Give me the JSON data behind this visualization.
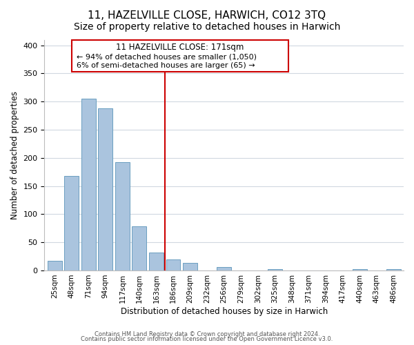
{
  "title": "11, HAZELVILLE CLOSE, HARWICH, CO12 3TQ",
  "subtitle": "Size of property relative to detached houses in Harwich",
  "bar_labels": [
    "25sqm",
    "48sqm",
    "71sqm",
    "94sqm",
    "117sqm",
    "140sqm",
    "163sqm",
    "186sqm",
    "209sqm",
    "232sqm",
    "256sqm",
    "279sqm",
    "302sqm",
    "325sqm",
    "348sqm",
    "371sqm",
    "394sqm",
    "417sqm",
    "440sqm",
    "463sqm",
    "486sqm"
  ],
  "bar_values": [
    17,
    168,
    305,
    288,
    193,
    79,
    32,
    19,
    13,
    0,
    6,
    0,
    0,
    3,
    0,
    0,
    0,
    0,
    3,
    0,
    2
  ],
  "bar_color": "#aac4de",
  "bar_edge_color": "#6a9ec0",
  "ylim": [
    0,
    410
  ],
  "yticks": [
    0,
    50,
    100,
    150,
    200,
    250,
    300,
    350,
    400
  ],
  "ylabel": "Number of detached properties",
  "xlabel": "Distribution of detached houses by size in Harwich",
  "vline_x_index": 6,
  "vline_color": "#cc0000",
  "annotation_title": "11 HAZELVILLE CLOSE: 171sqm",
  "annotation_line1": "← 94% of detached houses are smaller (1,050)",
  "annotation_line2": "6% of semi-detached houses are larger (65) →",
  "annotation_box_color": "#ffffff",
  "annotation_box_edge": "#cc0000",
  "footer_line1": "Contains HM Land Registry data © Crown copyright and database right 2024.",
  "footer_line2": "Contains public sector information licensed under the Open Government Licence v3.0.",
  "bg_color": "#ffffff",
  "grid_color": "#d0d8e0",
  "title_fontsize": 11,
  "subtitle_fontsize": 10
}
